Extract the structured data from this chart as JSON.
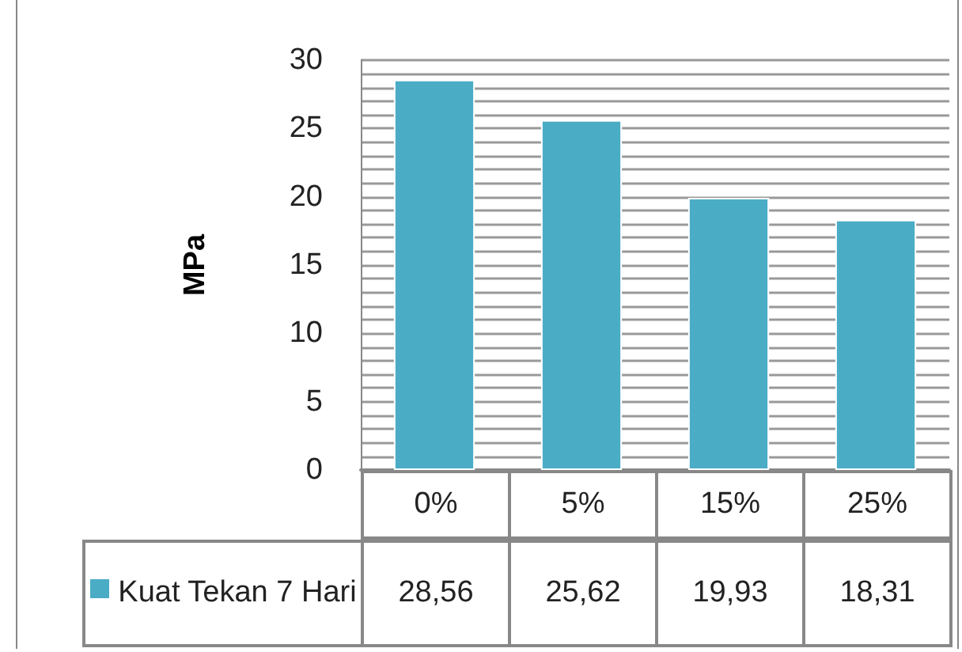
{
  "chart_data": {
    "type": "bar",
    "ylabel": "MPa",
    "categories": [
      "0%",
      "5%",
      "15%",
      "25%"
    ],
    "series": [
      {
        "name": "Kuat Tekan 7 Hari",
        "color": "#4bacc6",
        "values": [
          28.56,
          25.62,
          19.93,
          18.31
        ],
        "value_labels": [
          "28,56",
          "25,62",
          "19,93",
          "18,31"
        ]
      }
    ],
    "ylim": [
      0,
      30
    ],
    "yticks": [
      0,
      {
        "value": 1,
        "label": null
      },
      {
        "value": 2,
        "label": null
      },
      {
        "value": 3,
        "label": null
      },
      {
        "value": 4,
        "label": null
      },
      5,
      {
        "value": 6,
        "label": null
      },
      {
        "value": 7,
        "label": null
      },
      {
        "value": 8,
        "label": null
      },
      {
        "value": 9,
        "label": null
      },
      10,
      {
        "value": 11,
        "label": null
      },
      {
        "value": 12,
        "label": null
      },
      {
        "value": 13,
        "label": null
      },
      {
        "value": 14,
        "label": null
      },
      15,
      {
        "value": 16,
        "label": null
      },
      {
        "value": 17,
        "label": null
      },
      {
        "value": 18,
        "label": null
      },
      {
        "value": 19,
        "label": null
      },
      20,
      {
        "value": 21,
        "label": null
      },
      {
        "value": 22,
        "label": null
      },
      {
        "value": 23,
        "label": null
      },
      {
        "value": 24,
        "label": null
      },
      25,
      {
        "value": 26,
        "label": null
      },
      {
        "value": 27,
        "label": null
      },
      {
        "value": 28,
        "label": null
      },
      {
        "value": 29,
        "label": null
      },
      30
    ],
    "grid": true,
    "legend": "bottom left"
  }
}
